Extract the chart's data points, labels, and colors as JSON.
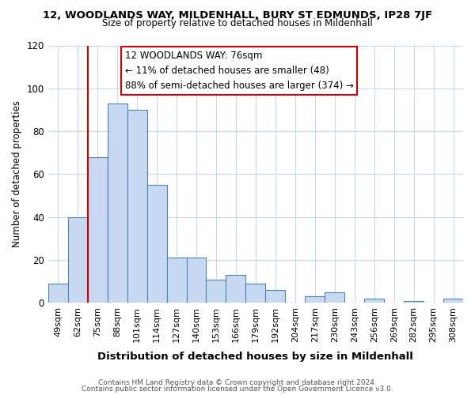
{
  "title1": "12, WOODLANDS WAY, MILDENHALL, BURY ST EDMUNDS, IP28 7JF",
  "title2": "Size of property relative to detached houses in Mildenhall",
  "xlabel": "Distribution of detached houses by size in Mildenhall",
  "ylabel": "Number of detached properties",
  "bar_labels": [
    "49sqm",
    "62sqm",
    "75sqm",
    "88sqm",
    "101sqm",
    "114sqm",
    "127sqm",
    "140sqm",
    "153sqm",
    "166sqm",
    "179sqm",
    "192sqm",
    "204sqm",
    "217sqm",
    "230sqm",
    "243sqm",
    "256sqm",
    "269sqm",
    "282sqm",
    "295sqm",
    "308sqm"
  ],
  "bar_values": [
    9,
    40,
    68,
    93,
    90,
    55,
    21,
    21,
    11,
    13,
    9,
    6,
    0,
    3,
    5,
    0,
    2,
    0,
    1,
    0,
    2
  ],
  "bar_color": "#c6d9f0",
  "bar_edge_color": "#4f81bd",
  "vline_x_index": 2,
  "vline_color": "#cc0000",
  "annotation_lines": [
    "12 WOODLANDS WAY: 76sqm",
    "← 11% of detached houses are smaller (48)",
    "88% of semi-detached houses are larger (374) →"
  ],
  "annotation_box_color": "#ffffff",
  "annotation_box_edge_color": "#cc0000",
  "ylim": [
    0,
    120
  ],
  "yticks": [
    0,
    20,
    40,
    60,
    80,
    100,
    120
  ],
  "footer1": "Contains HM Land Registry data © Crown copyright and database right 2024.",
  "footer2": "Contains public sector information licensed under the Open Government Licence v3.0.",
  "bg_color": "#ffffff",
  "grid_color": "#c8d8ec"
}
